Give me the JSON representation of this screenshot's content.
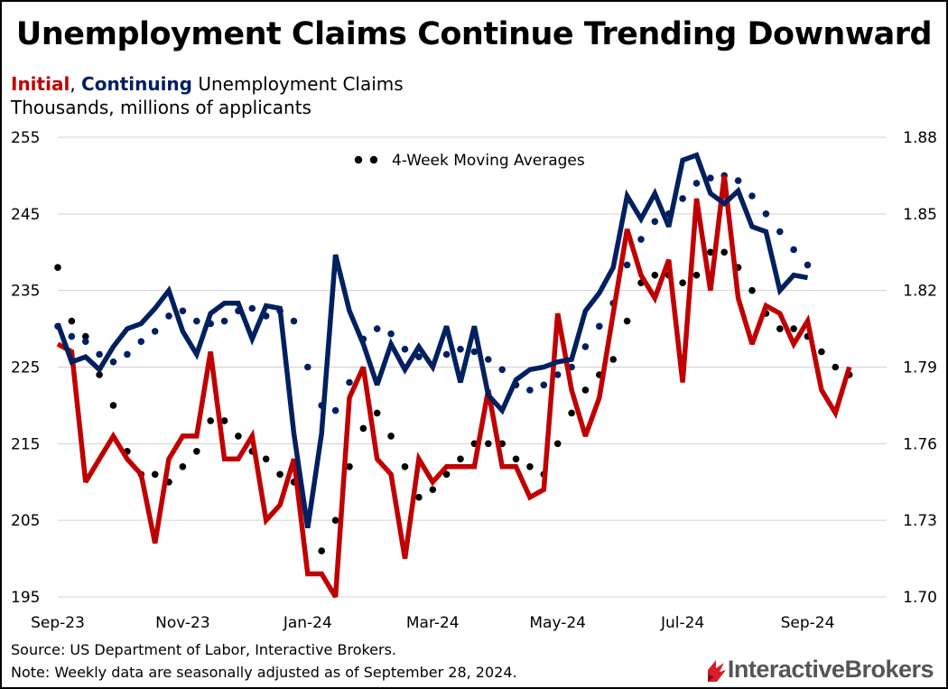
{
  "title": "Unemployment Claims Continue Trending Downward",
  "subtitle": {
    "initial_word": "Initial",
    "separator": ", ",
    "continuing_word": "Continuing",
    "rest": " Unemployment Claims",
    "units": "Thousands, millions of applicants"
  },
  "legend_label": "4-Week Moving Averages",
  "source": "Source: US Department of Labor, Interactive Brokers.",
  "note": "Note: Weekly data are seasonally adjusted as of September 28, 2024.",
  "logo": {
    "name": "InteractiveBrokers"
  },
  "colors": {
    "initial": "#c00000",
    "continuing": "#002060",
    "moving_average": "#000000"
  },
  "chart_data": {
    "type": "line",
    "title": "Unemployment Claims Continue Trending Downward",
    "x_tick_labels": [
      "Sep-23",
      "Nov-23",
      "Jan-24",
      "Mar-24",
      "May-24",
      "Jul-24",
      "Sep-24"
    ],
    "x_tick_week_index": [
      0,
      9,
      18,
      27,
      36,
      45,
      54
    ],
    "y_left": {
      "label": "Thousands",
      "ticks": [
        255,
        245,
        235,
        225,
        215,
        205,
        195
      ],
      "range": [
        195,
        255
      ]
    },
    "y_right": {
      "label": "Millions",
      "ticks": [
        "1.88",
        "1.85",
        "1.82",
        "1.79",
        "1.76",
        "1.73",
        "1.70"
      ],
      "range": [
        1.7,
        1.88
      ]
    },
    "legend_position": "top-center",
    "grid": "horizontal",
    "series": [
      {
        "name": "Initial",
        "axis": "left",
        "style": "solid",
        "values": [
          228,
          227,
          210,
          213,
          216,
          213,
          211,
          202,
          213,
          216,
          216,
          227,
          213,
          213,
          216,
          205,
          207,
          213,
          198,
          198,
          195,
          221,
          225,
          213,
          211,
          200,
          213,
          210,
          212,
          212,
          212,
          222,
          212,
          212,
          208,
          209,
          232,
          222,
          216,
          221,
          232,
          243,
          237,
          234,
          239,
          223,
          247,
          235,
          250,
          234,
          228,
          233,
          232,
          228,
          231,
          222,
          219,
          225
        ]
      },
      {
        "name": "Initial 4-week moving average",
        "axis": "left",
        "style": "dotted",
        "values": [
          238,
          231,
          229,
          224,
          220,
          214,
          211,
          211,
          210,
          212,
          214,
          218,
          218,
          216,
          214,
          213,
          211,
          210,
          205,
          201,
          205,
          212,
          217,
          219,
          216,
          212,
          208,
          209,
          211,
          213,
          215,
          215,
          215,
          213,
          212,
          211,
          215,
          219,
          222,
          224,
          226,
          231,
          236,
          237,
          237,
          236,
          237,
          240,
          240,
          238,
          235,
          232,
          230,
          230,
          229,
          227,
          225,
          224
        ]
      },
      {
        "name": "Continuing",
        "axis": "right",
        "style": "solid",
        "values": [
          1.807,
          1.792,
          1.794,
          1.789,
          1.798,
          1.805,
          1.807,
          1.813,
          1.82,
          1.804,
          1.795,
          1.811,
          1.815,
          1.815,
          1.801,
          1.814,
          1.813,
          1.764,
          1.727,
          1.764,
          1.834,
          1.812,
          1.799,
          1.783,
          1.799,
          1.789,
          1.798,
          1.79,
          1.806,
          1.784,
          1.806,
          1.779,
          1.773,
          1.785,
          1.789,
          1.79,
          1.792,
          1.793,
          1.812,
          1.819,
          1.829,
          1.857,
          1.848,
          1.858,
          1.845,
          1.871,
          1.873,
          1.858,
          1.854,
          1.859,
          1.845,
          1.843,
          1.82,
          1.826,
          1.825
        ]
      },
      {
        "name": "Continuing 4-week moving average",
        "axis": "right",
        "style": "dotted",
        "values": [
          1.806,
          1.802,
          1.8,
          1.795,
          1.792,
          1.795,
          1.8,
          1.804,
          1.81,
          1.812,
          1.808,
          1.807,
          1.808,
          1.812,
          1.813,
          1.81,
          1.812,
          1.808,
          1.79,
          1.775,
          1.773,
          1.784,
          1.801,
          1.805,
          1.803,
          1.797,
          1.794,
          1.791,
          1.795,
          1.797,
          1.796,
          1.793,
          1.789,
          1.783,
          1.781,
          1.783,
          1.787,
          1.79,
          1.798,
          1.806,
          1.815,
          1.83,
          1.84,
          1.847,
          1.85,
          1.856,
          1.862,
          1.864,
          1.865,
          1.863,
          1.857,
          1.85,
          1.843,
          1.836,
          1.83
        ]
      }
    ]
  }
}
